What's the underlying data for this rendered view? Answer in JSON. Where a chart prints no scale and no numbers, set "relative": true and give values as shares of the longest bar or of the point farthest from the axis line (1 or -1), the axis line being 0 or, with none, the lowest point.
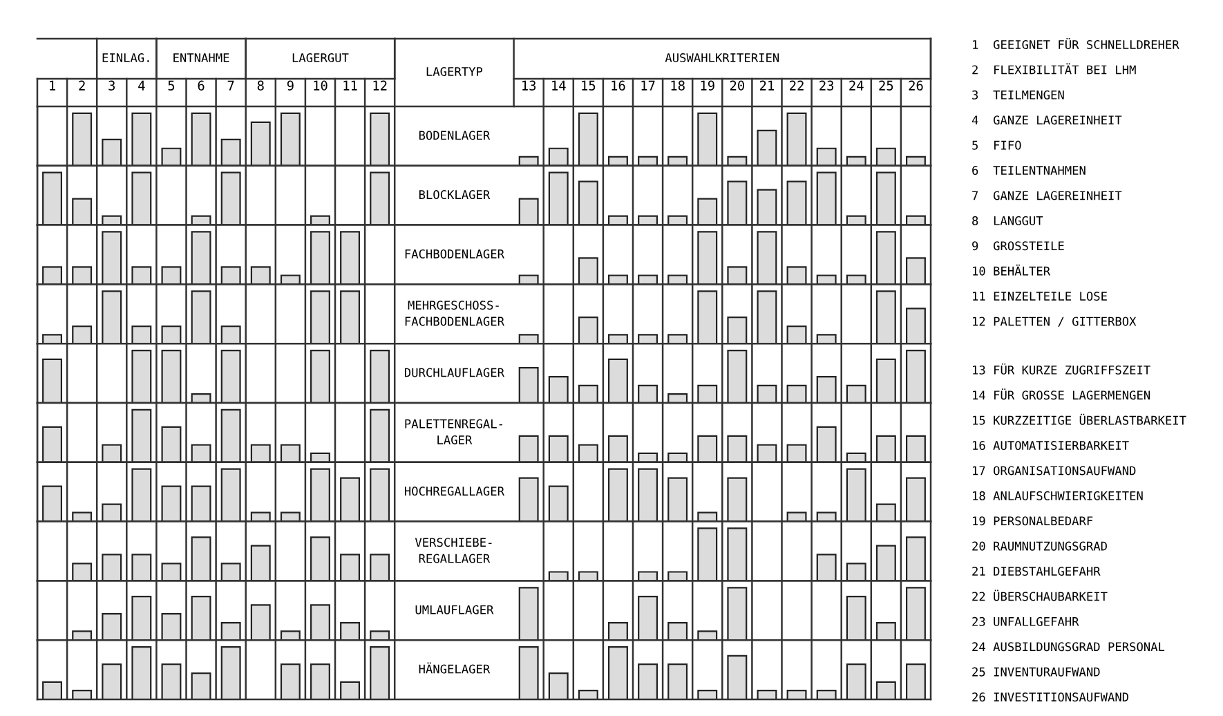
{
  "chart_data": [
    {
      "type": "bar",
      "title": "BODENLAGER",
      "categories": [
        "1",
        "2",
        "3",
        "4",
        "5",
        "6",
        "7",
        "8",
        "9",
        "10",
        "11",
        "12",
        "13",
        "14",
        "15",
        "16",
        "17",
        "18",
        "19",
        "20",
        "21",
        "22",
        "23",
        "24",
        "25",
        "26"
      ],
      "values": [
        0,
        1,
        0.5,
        1,
        0.33,
        1,
        0.5,
        0.83,
        1,
        0,
        0,
        1,
        0.17,
        0.33,
        1,
        0.17,
        0.17,
        0.17,
        1,
        0.17,
        0.67,
        1,
        0.33,
        0.17,
        0.33,
        0.17
      ],
      "color": "#dcdcdc",
      "relative": true,
      "tick_labels": "x",
      "annotations": [
        "EINLAG.",
        "ENTNAHME",
        "LAGERGUT",
        "LAGERTYP",
        "AUSWAHLKRITERIEN"
      ]
    },
    {
      "type": "bar",
      "title": "BLOCKLAGER",
      "categories": [
        "1",
        "2",
        "3",
        "4",
        "5",
        "6",
        "7",
        "8",
        "9",
        "10",
        "11",
        "12",
        "13",
        "14",
        "15",
        "16",
        "17",
        "18",
        "19",
        "20",
        "21",
        "22",
        "23",
        "24",
        "25",
        "26"
      ],
      "values": [
        1,
        0.5,
        0.17,
        1,
        0,
        0.17,
        1,
        0,
        0,
        0.17,
        0,
        1,
        0.5,
        1,
        0.83,
        0.17,
        0.17,
        0.17,
        0.5,
        0.83,
        0.67,
        0.83,
        1,
        0.17,
        1,
        0.17
      ],
      "color": "#dcdcdc",
      "relative": true,
      "tick_labels": false
    },
    {
      "type": "bar",
      "title": "FACHBODENLAGER",
      "categories": [
        "1",
        "2",
        "3",
        "4",
        "5",
        "6",
        "7",
        "8",
        "9",
        "10",
        "11",
        "12",
        "13",
        "14",
        "15",
        "16",
        "17",
        "18",
        "19",
        "20",
        "21",
        "22",
        "23",
        "24",
        "25",
        "26"
      ],
      "values": [
        0.33,
        0.33,
        1,
        0.33,
        0.33,
        1,
        0.33,
        0.33,
        0.17,
        1,
        1,
        0,
        0.17,
        0,
        0.5,
        0.17,
        0.17,
        0.17,
        1,
        0.33,
        1,
        0.33,
        0.17,
        0.17,
        1,
        0.5
      ],
      "color": "#dcdcdc",
      "relative": true,
      "tick_labels": false
    },
    {
      "type": "bar",
      "title": "MEHRGESCHOSS-\nFACHBODENLAGER",
      "categories": [
        "1",
        "2",
        "3",
        "4",
        "5",
        "6",
        "7",
        "8",
        "9",
        "10",
        "11",
        "12",
        "13",
        "14",
        "15",
        "16",
        "17",
        "18",
        "19",
        "20",
        "21",
        "22",
        "23",
        "24",
        "25",
        "26"
      ],
      "values": [
        0.17,
        0.33,
        1,
        0.33,
        0.33,
        1,
        0.33,
        0,
        0,
        1,
        1,
        0,
        0.17,
        0,
        0.5,
        0.17,
        0.17,
        0.17,
        1,
        0.5,
        1,
        0.33,
        0.17,
        0,
        1,
        0.67
      ],
      "color": "#dcdcdc",
      "relative": true,
      "tick_labels": false
    },
    {
      "type": "bar",
      "title": "DURCHLAUFLAGER",
      "categories": [
        "1",
        "2",
        "3",
        "4",
        "5",
        "6",
        "7",
        "8",
        "9",
        "10",
        "11",
        "12",
        "13",
        "14",
        "15",
        "16",
        "17",
        "18",
        "19",
        "20",
        "21",
        "22",
        "23",
        "24",
        "25",
        "26"
      ],
      "values": [
        0.83,
        0,
        0,
        1,
        1,
        0.17,
        1,
        0,
        0,
        1,
        0,
        1,
        0.67,
        0.5,
        0.33,
        0.83,
        0.33,
        0.17,
        0.33,
        1,
        0.33,
        0.33,
        0.5,
        0.33,
        0.83,
        1
      ],
      "color": "#dcdcdc",
      "relative": true,
      "tick_labels": false
    },
    {
      "type": "bar",
      "title": "PALETTENREGAL-\nLAGER",
      "categories": [
        "1",
        "2",
        "3",
        "4",
        "5",
        "6",
        "7",
        "8",
        "9",
        "10",
        "11",
        "12",
        "13",
        "14",
        "15",
        "16",
        "17",
        "18",
        "19",
        "20",
        "21",
        "22",
        "23",
        "24",
        "25",
        "26"
      ],
      "values": [
        0.67,
        0,
        0.33,
        1,
        0.67,
        0.33,
        1,
        0.33,
        0.33,
        0.17,
        0,
        1,
        0.5,
        0.5,
        0.33,
        0.5,
        0.17,
        0.17,
        0.5,
        0.5,
        0.33,
        0.33,
        0.67,
        0.17,
        0.5,
        0.5
      ],
      "color": "#dcdcdc",
      "relative": true,
      "tick_labels": false
    },
    {
      "type": "bar",
      "title": "HOCHREGALLAGER",
      "categories": [
        "1",
        "2",
        "3",
        "4",
        "5",
        "6",
        "7",
        "8",
        "9",
        "10",
        "11",
        "12",
        "13",
        "14",
        "15",
        "16",
        "17",
        "18",
        "19",
        "20",
        "21",
        "22",
        "23",
        "24",
        "25",
        "26"
      ],
      "values": [
        0.67,
        0.17,
        0.33,
        1,
        0.67,
        0.67,
        1,
        0.17,
        0.17,
        1,
        0.83,
        1,
        0.83,
        0.67,
        0,
        1,
        1,
        0.83,
        0.17,
        0.83,
        0,
        0.17,
        0.17,
        1,
        0.33,
        0.83
      ],
      "color": "#dcdcdc",
      "relative": true,
      "tick_labels": false
    },
    {
      "type": "bar",
      "title": "VERSCHIEBE-\nREGALLAGER",
      "categories": [
        "1",
        "2",
        "3",
        "4",
        "5",
        "6",
        "7",
        "8",
        "9",
        "10",
        "11",
        "12",
        "13",
        "14",
        "15",
        "16",
        "17",
        "18",
        "19",
        "20",
        "21",
        "22",
        "23",
        "24",
        "25",
        "26"
      ],
      "values": [
        0,
        0.33,
        0.5,
        0.5,
        0.33,
        0.83,
        0.33,
        0.67,
        0,
        0.83,
        0.5,
        0.5,
        0,
        0.17,
        0.17,
        0,
        0.17,
        0.17,
        1,
        1,
        0,
        0,
        0.5,
        0.33,
        0.67,
        0.83
      ],
      "color": "#dcdcdc",
      "relative": true,
      "tick_labels": false
    },
    {
      "type": "bar",
      "title": "UMLAUFLAGER",
      "categories": [
        "1",
        "2",
        "3",
        "4",
        "5",
        "6",
        "7",
        "8",
        "9",
        "10",
        "11",
        "12",
        "13",
        "14",
        "15",
        "16",
        "17",
        "18",
        "19",
        "20",
        "21",
        "22",
        "23",
        "24",
        "25",
        "26"
      ],
      "values": [
        0,
        0.17,
        0.5,
        0.83,
        0.5,
        0.83,
        0.33,
        0.67,
        0.17,
        0.67,
        0.33,
        0.17,
        1,
        0,
        0,
        0.33,
        0.83,
        0.33,
        0.17,
        1,
        0,
        0,
        0,
        0.83,
        0.33,
        1
      ],
      "color": "#dcdcdc",
      "relative": true,
      "tick_labels": false
    },
    {
      "type": "bar",
      "title": "HÄNGELAGER",
      "categories": [
        "1",
        "2",
        "3",
        "4",
        "5",
        "6",
        "7",
        "8",
        "9",
        "10",
        "11",
        "12",
        "13",
        "14",
        "15",
        "16",
        "17",
        "18",
        "19",
        "20",
        "21",
        "22",
        "23",
        "24",
        "25",
        "26"
      ],
      "values": [
        0.33,
        0.17,
        0.67,
        1,
        0.67,
        0.5,
        1,
        0,
        0.67,
        0.67,
        0.33,
        1,
        1,
        0.5,
        0.17,
        1,
        0.67,
        0.67,
        0.17,
        0.83,
        0.17,
        0.17,
        0.17,
        0.67,
        0.33,
        0.67
      ],
      "color": "#dcdcdc",
      "relative": true,
      "tick_labels": false
    },
    {
      "type": "other",
      "annotations": [
        "1  GEEIGNET FÜR SCHNELLDREHER",
        "2  FLEXIBILITÄT BEI LHM",
        "3  TEILMENGEN",
        "4  GANZE LAGEREINHEIT",
        "5  FIFO",
        "6  TEILENTNAHMEN",
        "7  GANZE LAGEREINHEIT",
        "8  LANGGUT",
        "9  GROSSTEILE",
        "10 BEHÄLTER",
        "11 EINZELTEILE LOSE",
        "12 PALETTEN / GITTERBOX",
        "13 FÜR KURZE ZUGRIFFSZEIT",
        "14 FÜR GROSSE LAGERMENGEN",
        "15 KURZZEITIGE ÜBERLASTBARKEIT",
        "16 AUTOMATISIERBARKEIT",
        "17 ORGANISATIONSAUFWAND",
        "18 ANLAUFSCHWIERIGKEITEN",
        "19 PERSONALBEDARF",
        "20 RAUMNUTZUNGSGRAD",
        "21 DIEBSTAHLGEFAHR",
        "22 ÜBERSCHAUBARKEIT",
        "23 UNFALLGEFAHR",
        "24 AUSBILDUNGSGRAD PERSONAL",
        "25 INVENTURAUFWAND",
        "26 INVESTITIONSAUFWAND"
      ]
    }
  ]
}
